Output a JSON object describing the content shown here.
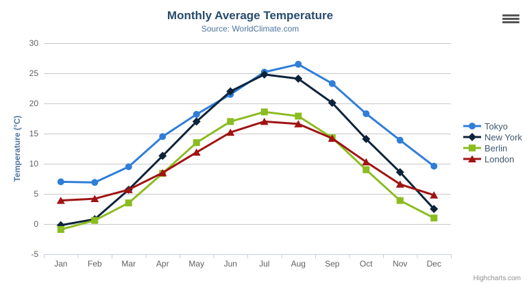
{
  "title": "Monthly Average Temperature",
  "subtitle": "Source: WorldClimate.com",
  "credits": "Highcharts.com",
  "export_menu_icon": "hamburger-icon",
  "colors": {
    "title": "#274b6d",
    "subtitle": "#4d759e",
    "axis_title": "#4d759e",
    "tick_label": "#606060",
    "gridline": "#c8c8c8",
    "x_axis_line": "#c0d0e0",
    "legend_text": "#3E576F"
  },
  "chart_data": {
    "type": "line",
    "title": "Monthly Average Temperature",
    "subtitle": "Source: WorldClimate.com",
    "categories": [
      "Jan",
      "Feb",
      "Mar",
      "Apr",
      "May",
      "Jun",
      "Jul",
      "Aug",
      "Sep",
      "Oct",
      "Nov",
      "Dec"
    ],
    "series": [
      {
        "name": "Tokyo",
        "color": "#2f7ed8",
        "marker": "circle",
        "values": [
          7.0,
          6.9,
          9.5,
          14.5,
          18.2,
          21.5,
          25.2,
          26.5,
          23.3,
          18.3,
          13.9,
          9.6
        ]
      },
      {
        "name": "New York",
        "color": "#0d233a",
        "marker": "diamond",
        "values": [
          -0.2,
          0.8,
          5.7,
          11.3,
          17.0,
          22.0,
          24.8,
          24.1,
          20.1,
          14.1,
          8.6,
          2.5
        ]
      },
      {
        "name": "Berlin",
        "color": "#8bbc21",
        "marker": "square",
        "values": [
          -0.9,
          0.6,
          3.5,
          8.4,
          13.5,
          17.0,
          18.6,
          17.9,
          14.3,
          9.0,
          3.9,
          1.0
        ]
      },
      {
        "name": "London",
        "color": "#a01313",
        "marker": "triangle",
        "values": [
          3.9,
          4.2,
          5.7,
          8.5,
          11.9,
          15.2,
          17.0,
          16.6,
          14.2,
          10.3,
          6.6,
          4.8
        ]
      }
    ],
    "xlabel": "",
    "ylabel": "Temperature (°C)",
    "ylim": [
      -5,
      30
    ],
    "ytick_step": 5,
    "grid": true,
    "legend_position": "right"
  }
}
